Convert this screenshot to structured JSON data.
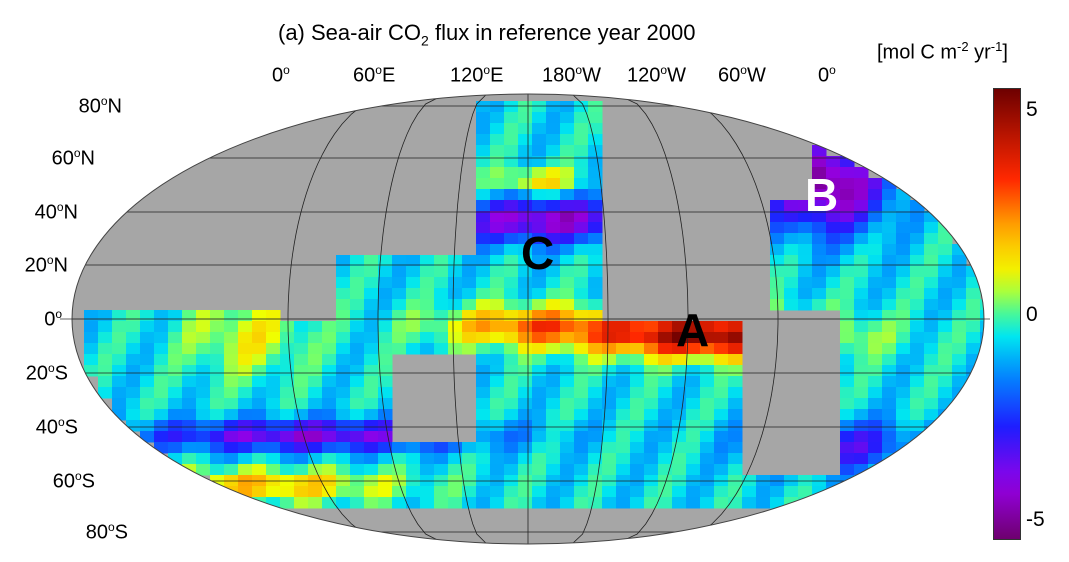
{
  "title": {
    "prefix": "(a) Sea-air CO",
    "sub": "2",
    "suffix": " flux in reference year 2000"
  },
  "units": {
    "open": "[mol C m",
    "exp1": "-2",
    "mid": " yr",
    "exp2": "-1",
    "close": "]"
  },
  "lon_labels": [
    {
      "num": "0",
      "deg": "o",
      "dir": ""
    },
    {
      "num": "60",
      "deg": "o",
      "dir": "E"
    },
    {
      "num": "120",
      "deg": "o",
      "dir": "E"
    },
    {
      "num": "180",
      "deg": "o",
      "dir": "W"
    },
    {
      "num": "120",
      "deg": "o",
      "dir": "W"
    },
    {
      "num": "60",
      "deg": "o",
      "dir": "W"
    },
    {
      "num": "0",
      "deg": "o",
      "dir": ""
    }
  ],
  "lat_labels": [
    {
      "num": "80",
      "deg": "o",
      "dir": "N"
    },
    {
      "num": "60",
      "deg": "o",
      "dir": "N"
    },
    {
      "num": "40",
      "deg": "o",
      "dir": "N"
    },
    {
      "num": "20",
      "deg": "o",
      "dir": "N"
    },
    {
      "num": "0",
      "deg": "o",
      "dir": ""
    },
    {
      "num": "20",
      "deg": "o",
      "dir": "S"
    },
    {
      "num": "40",
      "deg": "o",
      "dir": "S"
    },
    {
      "num": "60",
      "deg": "o",
      "dir": "S"
    },
    {
      "num": "80",
      "deg": "o",
      "dir": "S"
    }
  ],
  "regions": [
    "A",
    "B",
    "C"
  ],
  "colorbar": {
    "min": -5.5,
    "max": 5.5,
    "ticks": [
      "5",
      "0",
      "-5"
    ],
    "tick_values": [
      5,
      0,
      -5
    ]
  },
  "colors": {
    "land": "#a6a6a6",
    "ocean_missing": "#ffffff",
    "region_b": "#ffffff",
    "region_ac": "#000000"
  }
}
